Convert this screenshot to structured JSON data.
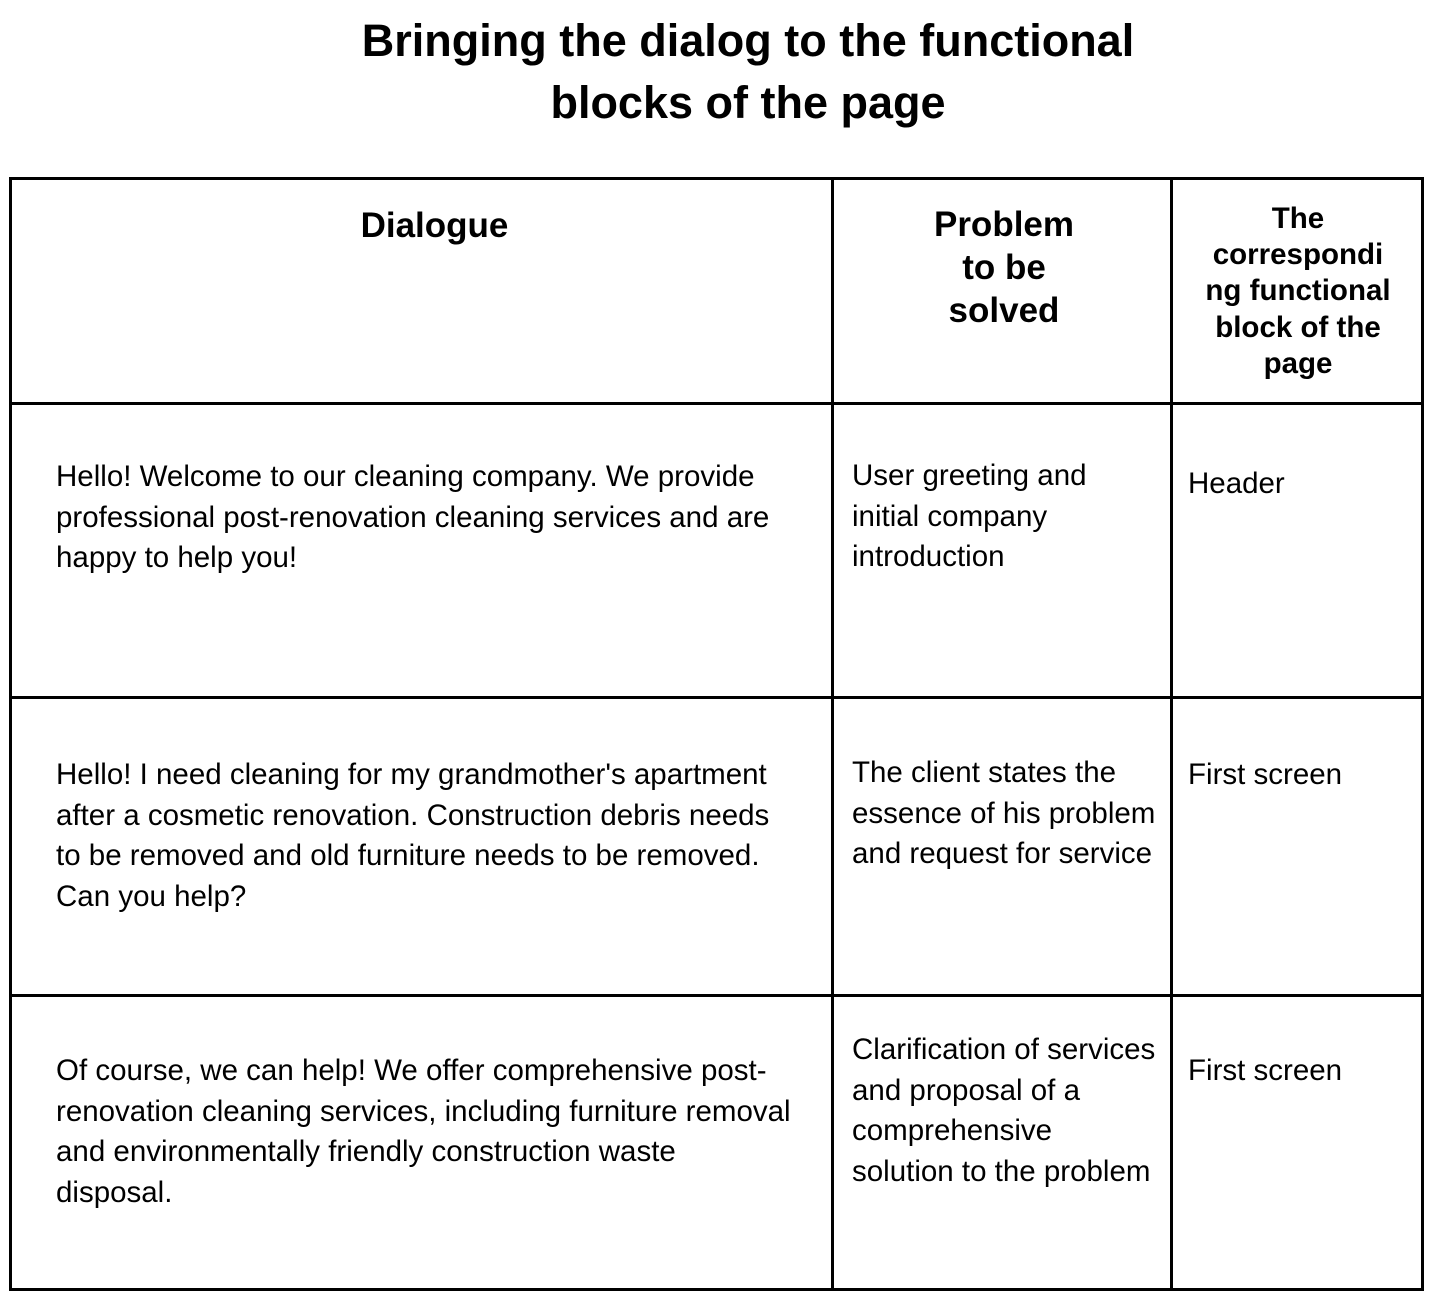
{
  "title": {
    "line1": "Bringing the dialog to the functional",
    "line2": "blocks of the page"
  },
  "table": {
    "headers": {
      "dialogue": "Dialogue",
      "problem": [
        "Problem",
        "to be",
        "solved"
      ],
      "block": [
        "The",
        "correspondi",
        "ng functional",
        "block of the",
        "page"
      ]
    },
    "rows": [
      {
        "dialogue": "Hello! Welcome to our cleaning company. We provide professional post-renovation cleaning services and are happy to help you!",
        "problem": "User greeting and initial company introduction",
        "block": "Header"
      },
      {
        "dialogue": "Hello! I need cleaning for my grandmother's apartment after a cosmetic renovation. Construction debris needs to be removed and old furniture needs to be removed. Can you help?",
        "problem": "The client states the essence of his problem and request for service",
        "block": "First screen"
      },
      {
        "dialogue": "Of course, we can help! We offer comprehensive post-renovation cleaning services, including furniture removal and environmentally friendly construction waste disposal.",
        "problem": "Clarification of services and proposal of a comprehensive solution to the problem",
        "block": "First screen"
      }
    ]
  }
}
